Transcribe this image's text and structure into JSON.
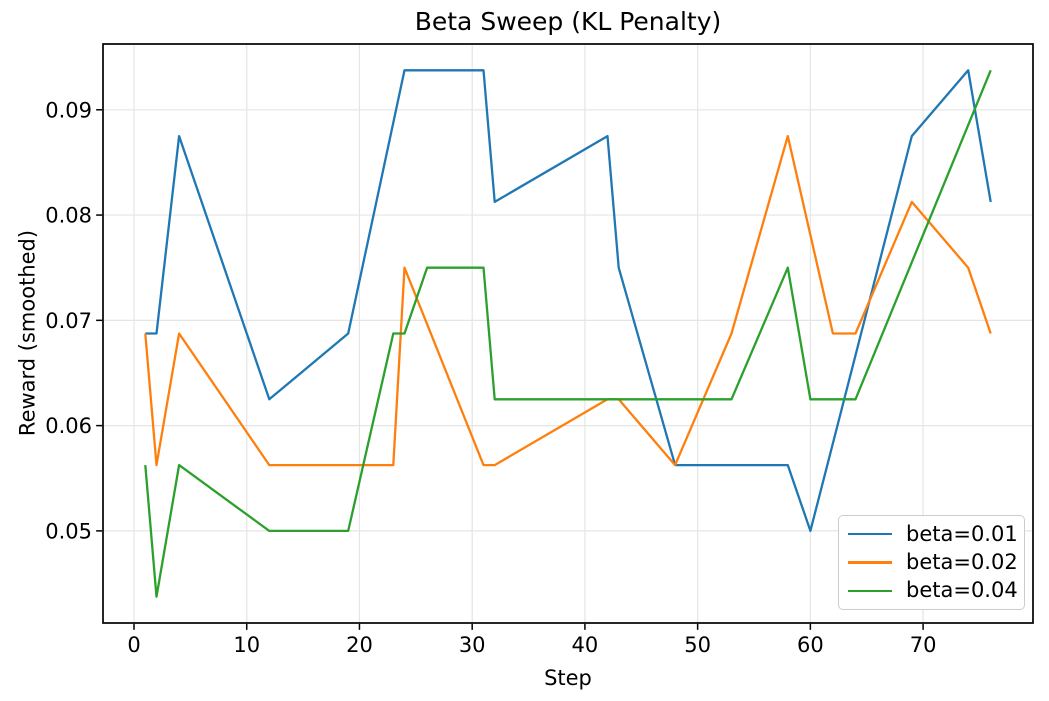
{
  "chart_data": {
    "type": "line",
    "title": "Beta Sweep (KL Penalty)",
    "xlabel": "Step",
    "ylabel": "Reward (smoothed)",
    "x_ticks": [
      0,
      10,
      20,
      30,
      40,
      50,
      60,
      70
    ],
    "y_ticks": [
      0.05,
      0.06,
      0.07,
      0.08,
      0.09
    ],
    "y_tick_decimals": 2,
    "xlim": [
      -2.75,
      79.75
    ],
    "ylim": [
      0.04125,
      0.09625
    ],
    "grid": true,
    "legend_position": "lower right",
    "series": [
      {
        "label": "beta=0.01",
        "color": "#1f77b4",
        "points": [
          [
            1,
            0.06875
          ],
          [
            2,
            0.06875
          ],
          [
            4,
            0.0875
          ],
          [
            12,
            0.0625
          ],
          [
            19,
            0.06875
          ],
          [
            24,
            0.09375
          ],
          [
            31,
            0.09375
          ],
          [
            32,
            0.08125
          ],
          [
            42,
            0.0875
          ],
          [
            43,
            0.075
          ],
          [
            48,
            0.05625
          ],
          [
            58,
            0.05625
          ],
          [
            60,
            0.05
          ],
          [
            69,
            0.0875
          ],
          [
            74,
            0.09375
          ],
          [
            76,
            0.08125
          ]
        ]
      },
      {
        "label": "beta=0.02",
        "color": "#ff7f0e",
        "points": [
          [
            1,
            0.06875
          ],
          [
            2,
            0.05625
          ],
          [
            4,
            0.06875
          ],
          [
            12,
            0.05625
          ],
          [
            23,
            0.05625
          ],
          [
            24,
            0.075
          ],
          [
            31,
            0.05625
          ],
          [
            32,
            0.05625
          ],
          [
            42,
            0.0625
          ],
          [
            43,
            0.0625
          ],
          [
            48,
            0.05625
          ],
          [
            53,
            0.06875
          ],
          [
            58,
            0.0875
          ],
          [
            62,
            0.06875
          ],
          [
            64,
            0.06875
          ],
          [
            69,
            0.08125
          ],
          [
            74,
            0.075
          ],
          [
            76,
            0.06875
          ]
        ]
      },
      {
        "label": "beta=0.04",
        "color": "#2ca02c",
        "points": [
          [
            1,
            0.05625
          ],
          [
            2,
            0.04375
          ],
          [
            4,
            0.05625
          ],
          [
            12,
            0.05
          ],
          [
            19,
            0.05
          ],
          [
            23,
            0.06875
          ],
          [
            24,
            0.06875
          ],
          [
            26,
            0.075
          ],
          [
            31,
            0.075
          ],
          [
            32,
            0.0625
          ],
          [
            53,
            0.0625
          ],
          [
            58,
            0.075
          ],
          [
            60,
            0.0625
          ],
          [
            64,
            0.0625
          ],
          [
            76,
            0.09375
          ]
        ]
      }
    ]
  }
}
